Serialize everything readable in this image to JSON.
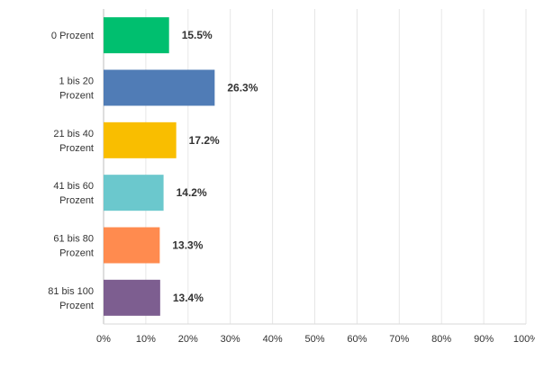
{
  "chart_data": {
    "type": "bar",
    "orientation": "horizontal",
    "title": "",
    "xlabel": "",
    "ylabel": "",
    "categories": [
      [
        "0 Prozent"
      ],
      [
        "1 bis 20",
        "Prozent"
      ],
      [
        "21 bis 40",
        "Prozent"
      ],
      [
        "41 bis 60",
        "Prozent"
      ],
      [
        "61 bis 80",
        "Prozent"
      ],
      [
        "81 bis 100",
        "Prozent"
      ]
    ],
    "values": [
      15.5,
      26.3,
      17.2,
      14.2,
      13.3,
      13.4
    ],
    "value_labels": [
      "15.5%",
      "26.3%",
      "17.2%",
      "14.2%",
      "13.3%",
      "13.4%"
    ],
    "colors": [
      "#00bf6f",
      "#507cb6",
      "#f9be00",
      "#6bc8cd",
      "#ff8b4f",
      "#7d5e90"
    ],
    "xlim": [
      0,
      100
    ],
    "xticks": [
      "0%",
      "10%",
      "20%",
      "30%",
      "40%",
      "50%",
      "60%",
      "70%",
      "80%",
      "90%",
      "100%"
    ],
    "grid": true,
    "legend": "none"
  }
}
